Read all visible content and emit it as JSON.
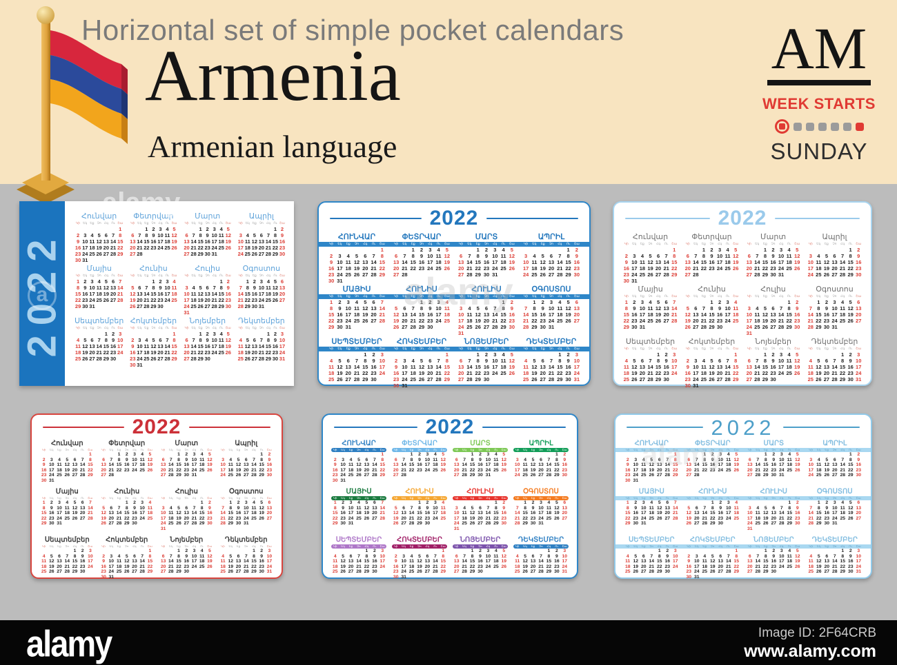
{
  "banner": {
    "subtitle": "Horizontal set of simple pocket calendars",
    "title": "Armenia",
    "language_line": "Armenian language",
    "country_code": "AM",
    "week_starts_label": "WEEK STARTS",
    "week_start_day": "SUNDAY"
  },
  "flag": {
    "name": "armenia-flag",
    "red": "#D7263D",
    "blue": "#2B4A9B",
    "orange": "#F2A51C",
    "pole_gold": "#E2A93F"
  },
  "watermark_text": "alamy",
  "watermark_letter": "a",
  "footer": {
    "logo": "alamy",
    "image_id": "Image ID: 2F64CRB",
    "site": "www.alamy.com"
  },
  "calendar": {
    "year": "2022",
    "day_abbr": [
      "Կի",
      "Եկ",
      "Եք",
      "Չո",
      "Հգ",
      "Ու",
      "Շա"
    ],
    "weekend_columns": [
      0,
      6
    ],
    "months": [
      {
        "name": "Հունվար",
        "days": 31,
        "start": 6
      },
      {
        "name": "Փետրվար",
        "days": 28,
        "start": 2
      },
      {
        "name": "Մարտ",
        "days": 31,
        "start": 2
      },
      {
        "name": "Ապրիլ",
        "days": 30,
        "start": 5
      },
      {
        "name": "Մայիս",
        "days": 31,
        "start": 0
      },
      {
        "name": "Հունիս",
        "days": 30,
        "start": 3
      },
      {
        "name": "Հուլիս",
        "days": 31,
        "start": 5
      },
      {
        "name": "Օգոստոս",
        "days": 31,
        "start": 1
      },
      {
        "name": "Սեպտեմբեր",
        "days": 30,
        "start": 4
      },
      {
        "name": "Հոկտեմբեր",
        "days": 31,
        "start": 6
      },
      {
        "name": "Նոյեմբեր",
        "days": 30,
        "start": 2
      },
      {
        "name": "Դեկտեմբեր",
        "days": 31,
        "start": 4
      }
    ]
  },
  "cards": [
    {
      "label": "white card with blue year side band",
      "upper": false,
      "name_color": "#5FA3DA",
      "band_color": "#1B74BE",
      "year_color": "#A9D2EE",
      "bar": "none"
    },
    {
      "label": "blue frame with full-width week bars",
      "upper": true,
      "border": "#2E86C8",
      "year_color": "#2377BD",
      "name_color": "#2377BD",
      "bar": "full",
      "bar_color": "#2E86C8",
      "bar_text": "#FFFFFF"
    },
    {
      "label": "light blue frame plain",
      "upper": false,
      "border": "#A8D4EF",
      "year_color": "#9ACAEB",
      "name_color": "#6F6F6F",
      "bar": "none"
    },
    {
      "label": "red frame plain",
      "upper": false,
      "border": "#D8453E",
      "year_color": "#CC3038",
      "name_color": "#3B3B3B",
      "bar": "none"
    },
    {
      "label": "blue frame with multicolor month bars",
      "upper": true,
      "border": "#2E86C8",
      "year_color": "#2377BD",
      "bar": "month",
      "month_colors": [
        "#2E7FC2",
        "#6FB7E8",
        "#7DC855",
        "#129D58",
        "#1B7B40",
        "#F5A733",
        "#E8352E",
        "#F47B20",
        "#AE77C8",
        "#A01E66",
        "#7B52AB",
        "#2F80C3"
      ]
    },
    {
      "label": "light blue frame with full-width week bars",
      "upper": true,
      "border": "#90C9E9",
      "year_color": "#4D9FC9",
      "name_color": "#82BDE0",
      "bar": "full",
      "bar_color": "#A9D8F1",
      "bar_text": "#64A0C2"
    }
  ],
  "colors": {
    "banner_bg": "#F8E4C0",
    "board_bg": "#BCBCBC",
    "weekend_red": "#DC3C34",
    "weekday_dark": "#1E1E1E",
    "footer_bg": "#060606"
  }
}
